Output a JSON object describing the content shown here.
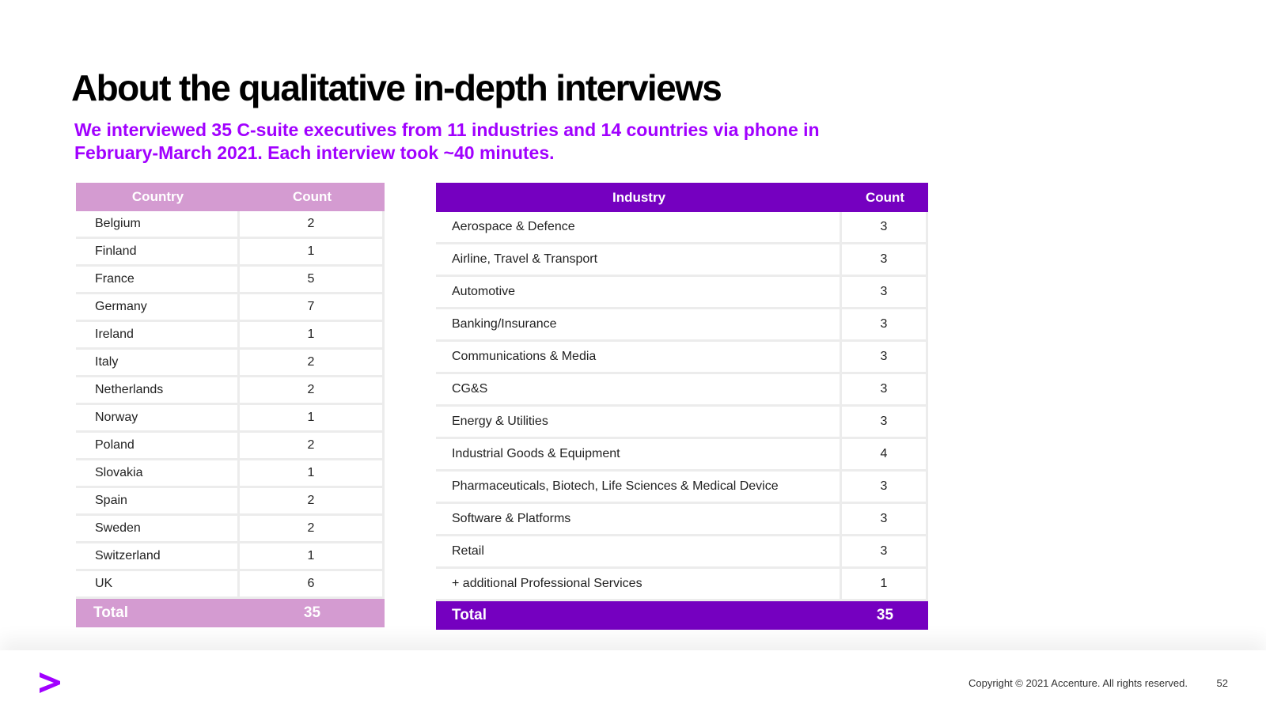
{
  "slide": {
    "title": "About the qualitative in-depth interviews",
    "subtitle": "We interviewed 35 C-suite executives from 11 industries and 14 countries via phone in February-March 2021. Each interview took ~40 minutes."
  },
  "country_table": {
    "headers": [
      "Country",
      "Count"
    ],
    "rows": [
      [
        "Belgium",
        "2"
      ],
      [
        "Finland",
        "1"
      ],
      [
        "France",
        "5"
      ],
      [
        "Germany",
        "7"
      ],
      [
        "Ireland",
        "1"
      ],
      [
        "Italy",
        "2"
      ],
      [
        "Netherlands",
        "2"
      ],
      [
        "Norway",
        "1"
      ],
      [
        "Poland",
        "2"
      ],
      [
        "Slovakia",
        "1"
      ],
      [
        "Spain",
        "2"
      ],
      [
        "Sweden",
        "2"
      ],
      [
        "Switzerland",
        "1"
      ],
      [
        "UK",
        "6"
      ]
    ],
    "total": [
      "Total",
      "35"
    ],
    "color": "#d49bd1"
  },
  "industry_table": {
    "headers": [
      "Industry",
      "Count"
    ],
    "rows": [
      [
        "Aerospace & Defence",
        "3"
      ],
      [
        "Airline, Travel & Transport",
        "3"
      ],
      [
        "Automotive",
        "3"
      ],
      [
        "Banking/Insurance",
        "3"
      ],
      [
        "Communications & Media",
        "3"
      ],
      [
        "CG&S",
        "3"
      ],
      [
        "Energy & Utilities",
        "3"
      ],
      [
        "Industrial Goods & Equipment",
        "4"
      ],
      [
        "Pharmaceuticals, Biotech, Life Sciences & Medical Device",
        "3"
      ],
      [
        "Software & Platforms",
        "3"
      ],
      [
        "Retail",
        "3"
      ],
      [
        "+ additional Professional Services",
        "1"
      ]
    ],
    "total": [
      "Total",
      "35"
    ],
    "color": "#7500c0"
  },
  "footer": {
    "logo_icon": "accenture-chevron-icon",
    "copyright": "Copyright © 2021 Accenture. All rights reserved.",
    "page_number": "52"
  },
  "colors": {
    "accent_purple": "#a100ff",
    "dark_purple": "#7500c0",
    "light_purple": "#d49bd1"
  }
}
